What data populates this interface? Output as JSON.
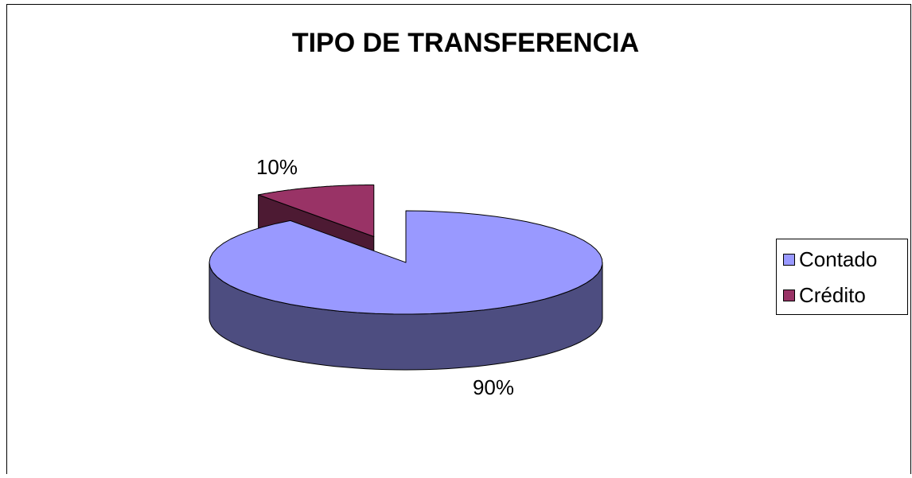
{
  "chart_data": {
    "type": "pie",
    "title": "TIPO DE TRANSFERENCIA",
    "categories": [
      "Contado",
      "Crédito"
    ],
    "values": [
      90,
      10
    ],
    "value_labels": [
      "90%",
      "10%"
    ],
    "colors": [
      "#9999ff",
      "#993366"
    ],
    "legend": "right"
  }
}
